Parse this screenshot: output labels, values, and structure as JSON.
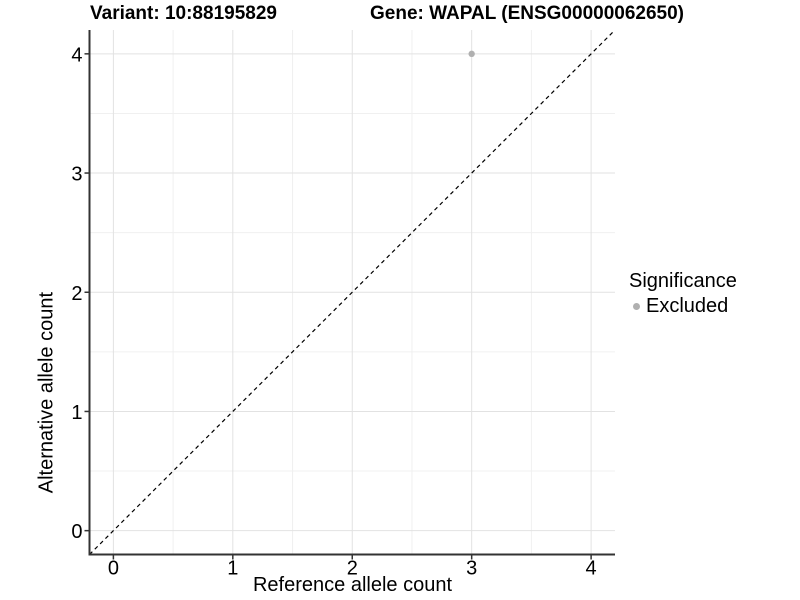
{
  "chart_data": {
    "type": "scatter",
    "title_left": "Variant: 10:88195829",
    "title_right": "Gene: WAPAL (ENSG00000062650)",
    "xlabel": "Reference allele count",
    "ylabel": "Alternative allele count",
    "xlim": [
      -0.2,
      4.2
    ],
    "ylim": [
      -0.2,
      4.2
    ],
    "x_ticks": [
      0,
      1,
      2,
      3,
      4
    ],
    "y_ticks": [
      0,
      1,
      2,
      3,
      4
    ],
    "minor_ticks": [
      0.5,
      1.5,
      2.5,
      3.5
    ],
    "grid": "on",
    "legend_position": "right",
    "identity_line": {
      "style": "dashed",
      "from": [
        -0.2,
        -0.2
      ],
      "to": [
        4.2,
        4.2
      ]
    },
    "series": [
      {
        "name": "Excluded",
        "color": "#b0b0b0",
        "points": [
          {
            "x": 3,
            "y": 4
          }
        ]
      }
    ]
  },
  "legend": {
    "title": "Significance",
    "items": [
      {
        "label": "Excluded",
        "color": "#b0b0b0"
      }
    ]
  },
  "colors": {
    "grid_major": "#e2e2e2",
    "grid_minor": "#f0f0f0",
    "axis_line": "#333333",
    "tick_mark": "#333333",
    "tick_label": "#000000",
    "dashed_line": "#000000",
    "background": "#ffffff"
  }
}
